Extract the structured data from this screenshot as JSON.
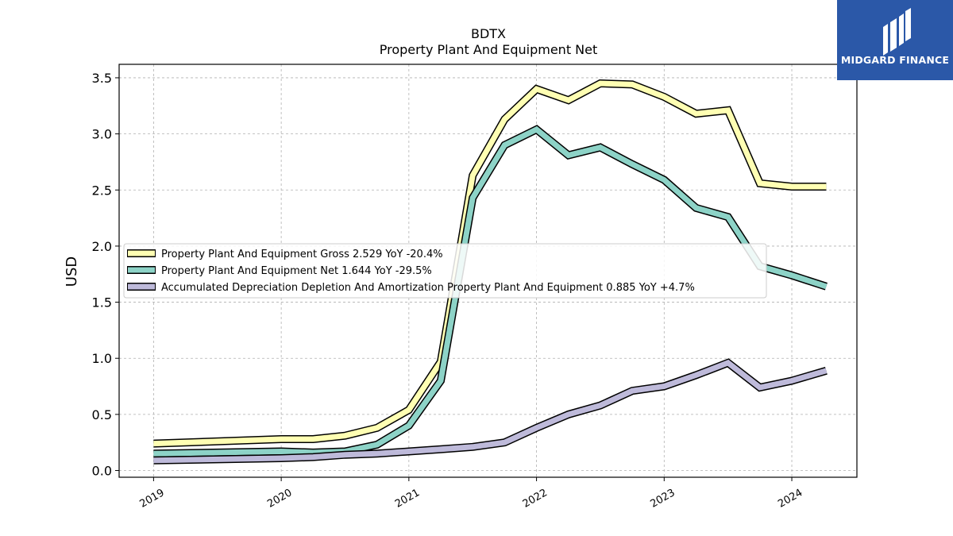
{
  "brand": {
    "name": "MIDGARD FINANCE",
    "background": "#2b58a8"
  },
  "chart_data": {
    "type": "line",
    "title": "BDTX",
    "subtitle": "Property Plant And Equipment Net",
    "xlabel": "",
    "ylabel": "USD",
    "xlim": [
      2018.73,
      2024.51
    ],
    "ylim": [
      -0.06,
      3.62
    ],
    "x_ticks": [
      2019,
      2020,
      2021,
      2022,
      2023,
      2024
    ],
    "x_tick_labels": [
      "2019",
      "2020",
      "2021",
      "2022",
      "2023",
      "2024"
    ],
    "y_ticks": [
      0.0,
      0.5,
      1.0,
      1.5,
      2.0,
      2.5,
      3.0,
      3.5
    ],
    "y_tick_labels": [
      "0.0",
      "0.5",
      "1.0",
      "1.5",
      "2.0",
      "2.5",
      "3.0",
      "3.5"
    ],
    "grid": true,
    "legend_position": "center-left",
    "series": [
      {
        "name": "Property Plant And Equipment Gross",
        "legend_label": "Property Plant And Equipment Gross  2.529 YoY -20.4%",
        "color": "#ffffb3",
        "x": [
          2019.0,
          2020.0,
          2020.25,
          2020.5,
          2020.75,
          2021.0,
          2021.25,
          2021.5,
          2021.75,
          2022.0,
          2022.25,
          2022.5,
          2022.75,
          2023.0,
          2023.25,
          2023.5,
          2023.75,
          2024.0,
          2024.27
        ],
        "y": [
          0.24,
          0.28,
          0.28,
          0.31,
          0.38,
          0.54,
          0.97,
          2.63,
          3.13,
          3.4,
          3.3,
          3.45,
          3.44,
          3.33,
          3.18,
          3.21,
          2.56,
          2.53,
          2.53
        ]
      },
      {
        "name": "Property Plant And Equipment Net",
        "legend_label": "Property Plant And Equipment Net  1.644 YoY -29.5%",
        "color": "#8dd3c7",
        "x": [
          2019.0,
          2020.0,
          2020.25,
          2020.5,
          2020.75,
          2021.0,
          2021.25,
          2021.5,
          2021.75,
          2022.0,
          2022.25,
          2022.5,
          2022.75,
          2023.0,
          2023.25,
          2023.5,
          2023.75,
          2024.0,
          2024.27
        ],
        "y": [
          0.15,
          0.17,
          0.16,
          0.17,
          0.23,
          0.4,
          0.8,
          2.43,
          2.9,
          3.04,
          2.81,
          2.88,
          2.73,
          2.59,
          2.34,
          2.26,
          1.82,
          1.74,
          1.64
        ]
      },
      {
        "name": "Accumulated Depreciation Depletion And Amortization Property Plant And Equipment",
        "legend_label": "Accumulated Depreciation Depletion And Amortization Property Plant And Equipment  0.885 YoY +4.7%",
        "color": "#bebada",
        "x": [
          2019.0,
          2020.0,
          2020.25,
          2020.5,
          2020.75,
          2021.0,
          2021.25,
          2021.5,
          2021.75,
          2022.0,
          2022.25,
          2022.5,
          2022.75,
          2023.0,
          2023.25,
          2023.5,
          2023.75,
          2024.0,
          2024.27
        ],
        "y": [
          0.09,
          0.11,
          0.12,
          0.14,
          0.15,
          0.17,
          0.19,
          0.21,
          0.25,
          0.38,
          0.5,
          0.58,
          0.71,
          0.75,
          0.85,
          0.96,
          0.74,
          0.8,
          0.89
        ]
      }
    ]
  }
}
